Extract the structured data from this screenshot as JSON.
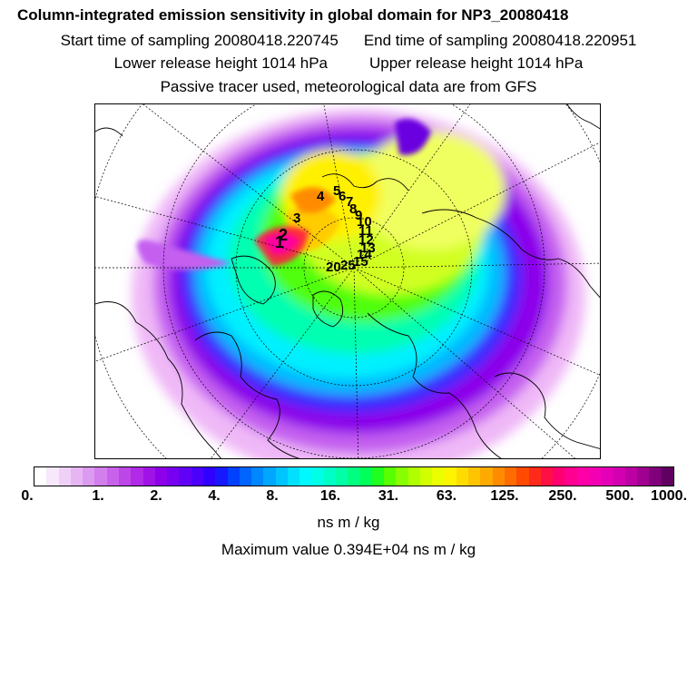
{
  "title": {
    "line1": "Column-integrated emission sensitivity in global domain for NP3_20080418",
    "start_label": "Start time of sampling 20080418.220745",
    "end_label": "End time of sampling 20080418.220951",
    "lower_label": "Lower release height 1014 hPa",
    "upper_label": "Upper release height 1014 hPa",
    "line4": "Passive tracer used, meteorological data are from GFS"
  },
  "map": {
    "projection": "north-polar-stereographic",
    "trajectory_labels": [
      "1",
      "2",
      "3",
      "4",
      "5",
      "6",
      "7",
      "8",
      "9",
      "10",
      "11",
      "12",
      "13",
      "14",
      "15",
      "20",
      "25"
    ]
  },
  "colorbar": {
    "colors": [
      "#ffffff",
      "#f7e8fb",
      "#efd0f7",
      "#e6b6f3",
      "#dc9af0",
      "#d37eed",
      "#c862ea",
      "#bd46e7",
      "#b12ae5",
      "#a012e5",
      "#8c00ea",
      "#7800f0",
      "#6000f5",
      "#4a00fa",
      "#3000ff",
      "#1818ff",
      "#0040ff",
      "#0064ff",
      "#0086ff",
      "#00a6ff",
      "#00c4ff",
      "#00e0ff",
      "#00f8ff",
      "#00ffe6",
      "#00ffc6",
      "#00ffa6",
      "#00ff80",
      "#00ff58",
      "#20ff20",
      "#58ff00",
      "#88ff00",
      "#b0ff00",
      "#d2ff00",
      "#ecff00",
      "#fff400",
      "#ffdc00",
      "#ffc400",
      "#ffaa00",
      "#ff8c00",
      "#ff6c00",
      "#ff4a00",
      "#ff2a1a",
      "#ff1044",
      "#ff0070",
      "#ff0090",
      "#ff00a8",
      "#f400b4",
      "#e400b6",
      "#d200b0",
      "#bc00a4",
      "#a00090",
      "#80007a",
      "#600060"
    ],
    "tick_labels": [
      "0.",
      "1.",
      "2.",
      "4.",
      "8.",
      "16.",
      "31.",
      "63.",
      "125.",
      "250.",
      "500.",
      "1000."
    ],
    "unit": "ns m / kg"
  },
  "max_value_label": "Maximum value  0.394E+04 ns m / kg"
}
